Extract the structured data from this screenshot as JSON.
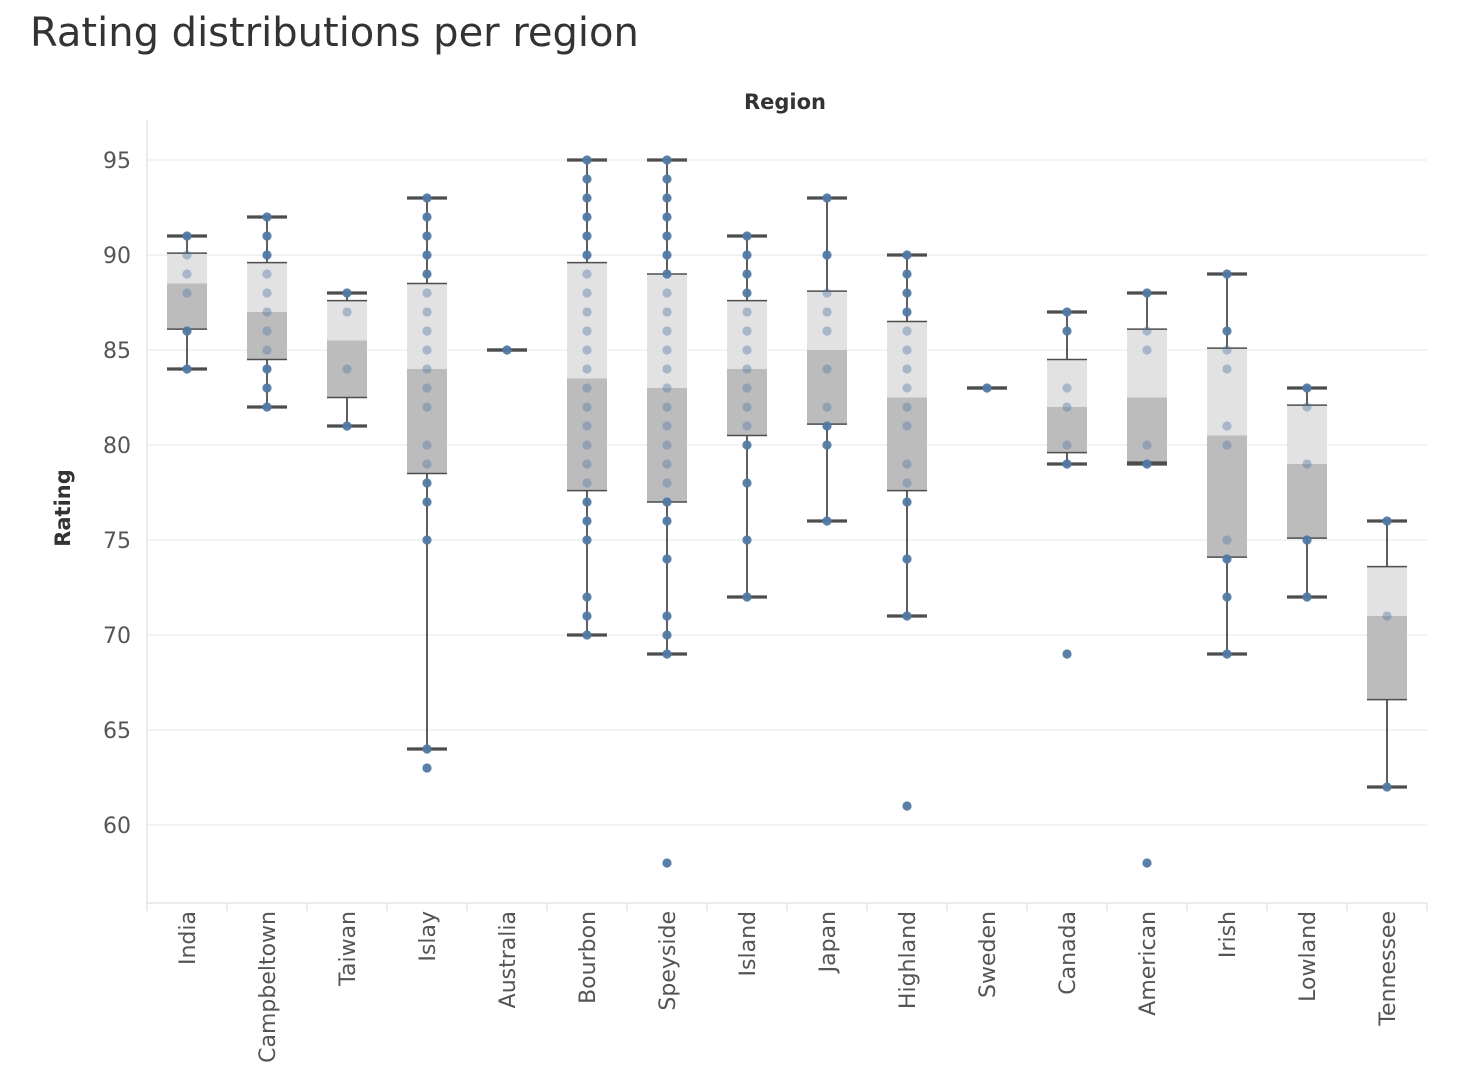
{
  "title": "Rating distributions per region",
  "colors": {
    "upper_box": "#e2e2e2",
    "lower_box": "#bcbcbc",
    "whisker": "#4d4d4d",
    "point": "#4e79a7",
    "grid": "#ececec",
    "axis": "#d9d9d9"
  },
  "chart_data": {
    "type": "box",
    "column_header": "Region",
    "ylabel": "Rating",
    "ylim": [
      56,
      97
    ],
    "yticks": [
      60,
      65,
      70,
      75,
      80,
      85,
      90,
      95
    ],
    "grid": true,
    "categories": [
      "India",
      "Campbeltown",
      "Taiwan",
      "Islay",
      "Australia",
      "Bourbon",
      "Speyside",
      "Island",
      "Japan",
      "Highland",
      "Sweden",
      "Canada",
      "American",
      "Irish",
      "Lowland",
      "Tennessee"
    ],
    "boxes": [
      {
        "region": "India",
        "lower_whisker": 84,
        "q1": 86.1,
        "median": 88.5,
        "q3": 90.1,
        "upper_whisker": 91,
        "points": [
          84,
          86,
          88,
          89,
          90,
          91
        ]
      },
      {
        "region": "Campbeltown",
        "lower_whisker": 82,
        "q1": 84.5,
        "median": 87,
        "q3": 89.6,
        "upper_whisker": 92,
        "points": [
          82,
          83,
          84,
          85,
          86,
          87,
          88,
          89,
          90,
          91,
          92
        ]
      },
      {
        "region": "Taiwan",
        "lower_whisker": 81,
        "q1": 82.5,
        "median": 85.5,
        "q3": 87.6,
        "upper_whisker": 88,
        "points": [
          81,
          84,
          87,
          88
        ]
      },
      {
        "region": "Islay",
        "lower_whisker": 64,
        "q1": 78.5,
        "median": 84,
        "q3": 88.5,
        "upper_whisker": 93,
        "points": [
          63,
          64,
          75,
          77,
          78,
          79,
          80,
          82,
          83,
          84,
          85,
          86,
          87,
          88,
          89,
          90,
          91,
          92,
          93
        ]
      },
      {
        "region": "Australia",
        "lower_whisker": 85,
        "q1": 85,
        "median": 85,
        "q3": 85,
        "upper_whisker": 85,
        "points": [
          85
        ]
      },
      {
        "region": "Bourbon",
        "lower_whisker": 70,
        "q1": 77.6,
        "median": 83.5,
        "q3": 89.6,
        "upper_whisker": 95,
        "points": [
          70,
          71,
          72,
          75,
          76,
          77,
          78,
          79,
          80,
          81,
          82,
          83,
          84,
          85,
          86,
          87,
          88,
          89,
          90,
          91,
          92,
          93,
          94,
          95
        ]
      },
      {
        "region": "Speyside",
        "lower_whisker": 69,
        "q1": 77,
        "median": 83,
        "q3": 89,
        "upper_whisker": 95,
        "points": [
          58,
          69,
          70,
          71,
          74,
          76,
          77,
          78,
          79,
          80,
          81,
          82,
          83,
          84,
          85,
          86,
          87,
          88,
          89,
          90,
          91,
          92,
          93,
          94,
          95
        ]
      },
      {
        "region": "Island",
        "lower_whisker": 72,
        "q1": 80.5,
        "median": 84,
        "q3": 87.6,
        "upper_whisker": 91,
        "points": [
          72,
          75,
          78,
          80,
          81,
          82,
          83,
          84,
          85,
          86,
          87,
          88,
          89,
          90,
          91
        ]
      },
      {
        "region": "Japan",
        "lower_whisker": 76,
        "q1": 81.1,
        "median": 85,
        "q3": 88.1,
        "upper_whisker": 93,
        "points": [
          76,
          80,
          81,
          82,
          84,
          86,
          87,
          88,
          90,
          93
        ]
      },
      {
        "region": "Highland",
        "lower_whisker": 71,
        "q1": 77.6,
        "median": 82.5,
        "q3": 86.5,
        "upper_whisker": 90,
        "points": [
          61,
          71,
          74,
          77,
          78,
          79,
          81,
          82,
          83,
          84,
          85,
          86,
          87,
          88,
          89,
          90
        ]
      },
      {
        "region": "Sweden",
        "lower_whisker": 83,
        "q1": 83,
        "median": 83,
        "q3": 83,
        "upper_whisker": 83,
        "points": [
          83
        ]
      },
      {
        "region": "Canada",
        "lower_whisker": 79,
        "q1": 79.6,
        "median": 82,
        "q3": 84.5,
        "upper_whisker": 87,
        "points": [
          69,
          79,
          80,
          82,
          83,
          86,
          87
        ]
      },
      {
        "region": "American",
        "lower_whisker": 79,
        "q1": 79.1,
        "median": 82.5,
        "q3": 86.1,
        "upper_whisker": 88,
        "points": [
          58,
          79,
          80,
          85,
          86,
          88
        ]
      },
      {
        "region": "Irish",
        "lower_whisker": 69,
        "q1": 74.1,
        "median": 80.5,
        "q3": 85.1,
        "upper_whisker": 89,
        "points": [
          69,
          72,
          74,
          75,
          80,
          81,
          84,
          85,
          86,
          89
        ]
      },
      {
        "region": "Lowland",
        "lower_whisker": 72,
        "q1": 75.1,
        "median": 79,
        "q3": 82.1,
        "upper_whisker": 83,
        "points": [
          72,
          75,
          79,
          82,
          83
        ]
      },
      {
        "region": "Tennessee",
        "lower_whisker": 62,
        "q1": 66.6,
        "median": 71,
        "q3": 73.6,
        "upper_whisker": 76,
        "points": [
          62,
          71,
          76
        ]
      }
    ]
  }
}
